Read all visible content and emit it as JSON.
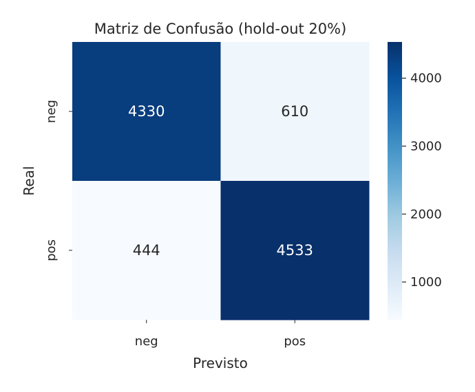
{
  "chart_data": {
    "type": "heatmap",
    "title": "Matriz de Confusão (hold-out 20%)",
    "xlabel": "Previsto",
    "ylabel": "Real",
    "x_categories": [
      "neg",
      "pos"
    ],
    "y_categories": [
      "neg",
      "pos"
    ],
    "values": [
      [
        4330,
        610
      ],
      [
        444,
        4533
      ]
    ],
    "colormap": "Blues",
    "colorbar": {
      "min": 444,
      "max": 4533,
      "ticks": [
        1000,
        2000,
        3000,
        4000
      ]
    }
  }
}
